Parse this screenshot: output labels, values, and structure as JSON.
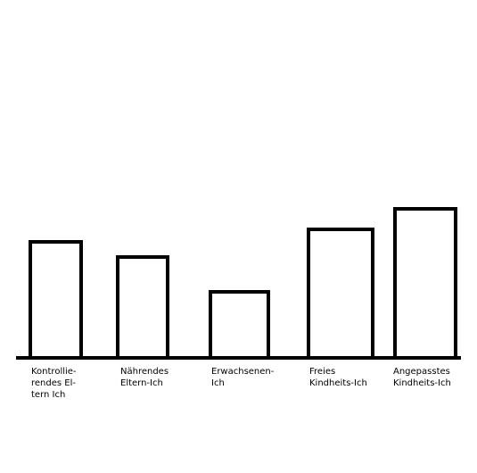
{
  "chart_data": {
    "type": "bar",
    "categories": [
      "Kontrollierendes Eltern Ich",
      "Nährendes Eltern-Ich",
      "Erwachsenen-Ich",
      "Freies Kindheits-Ich",
      "Angepasstes Kindheits-Ich"
    ],
    "category_label_lines": [
      [
        "Kontrollie-",
        "rendes El-",
        "tern Ich"
      ],
      [
        "Nährendes",
        "Eltern-Ich"
      ],
      [
        "Erwachsenen-",
        "Ich"
      ],
      [
        "Freies",
        "Kindheits-Ich"
      ],
      [
        "Angepasstes",
        "Kindheits-Ich"
      ]
    ],
    "values": [
      130,
      113,
      74,
      144,
      167
    ],
    "title": "",
    "xlabel": "",
    "ylabel": "",
    "ylim": [
      0,
      300
    ],
    "grid": false,
    "legend": "none",
    "colors": {
      "bar_fill": "#ffffff",
      "bar_stroke": "#000000",
      "axis": "#000000"
    }
  }
}
